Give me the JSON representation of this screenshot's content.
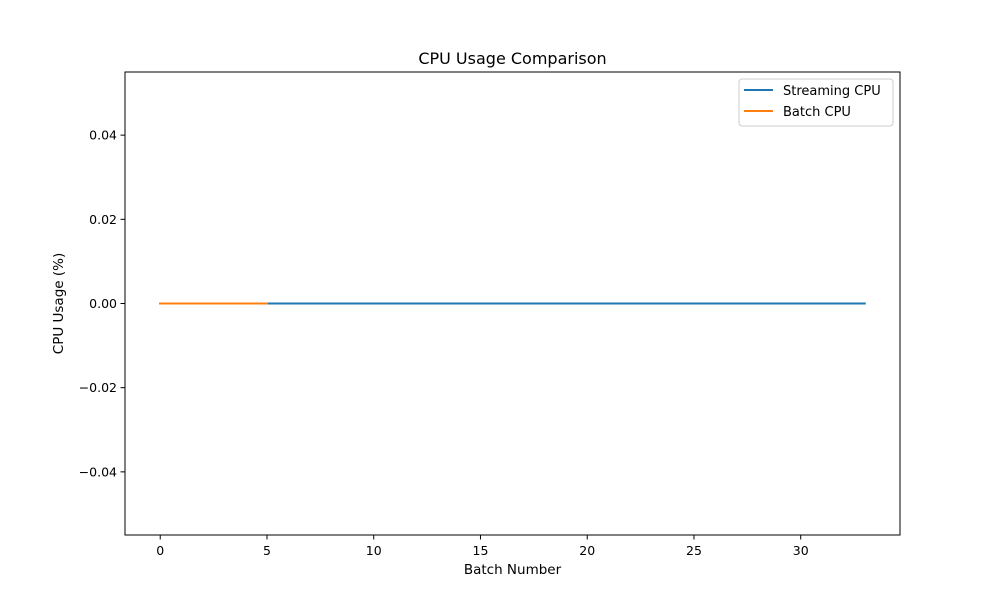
{
  "chart_data": {
    "type": "line",
    "title": "CPU Usage Comparison",
    "xlabel": "Batch Number",
    "ylabel": "CPU Usage (%)",
    "xlim": [
      -1.65,
      34.65
    ],
    "ylim": [
      -0.055,
      0.055
    ],
    "xticks": [
      0,
      5,
      10,
      15,
      20,
      25,
      30
    ],
    "yticks": [
      -0.04,
      -0.02,
      0.0,
      0.02,
      0.04
    ],
    "ytick_labels": [
      "−0.04",
      "−0.02",
      "0.00",
      "0.02",
      "0.04"
    ],
    "grid": false,
    "legend_position": "top-right",
    "series": [
      {
        "name": "Streaming CPU",
        "color": "#1f77b4",
        "x": [
          0,
          1,
          2,
          3,
          4,
          5,
          6,
          7,
          8,
          9,
          10,
          11,
          12,
          13,
          14,
          15,
          16,
          17,
          18,
          19,
          20,
          21,
          22,
          23,
          24,
          25,
          26,
          27,
          28,
          29,
          30,
          31,
          32,
          33
        ],
        "y": [
          0,
          0,
          0,
          0,
          0,
          0,
          0,
          0,
          0,
          0,
          0,
          0,
          0,
          0,
          0,
          0,
          0,
          0,
          0,
          0,
          0,
          0,
          0,
          0,
          0,
          0,
          0,
          0,
          0,
          0,
          0,
          0,
          0,
          0
        ]
      },
      {
        "name": "Batch CPU",
        "color": "#ff7f0e",
        "x": [
          0,
          1,
          2,
          3,
          4,
          5
        ],
        "y": [
          0,
          0,
          0,
          0,
          0,
          0
        ]
      }
    ]
  }
}
